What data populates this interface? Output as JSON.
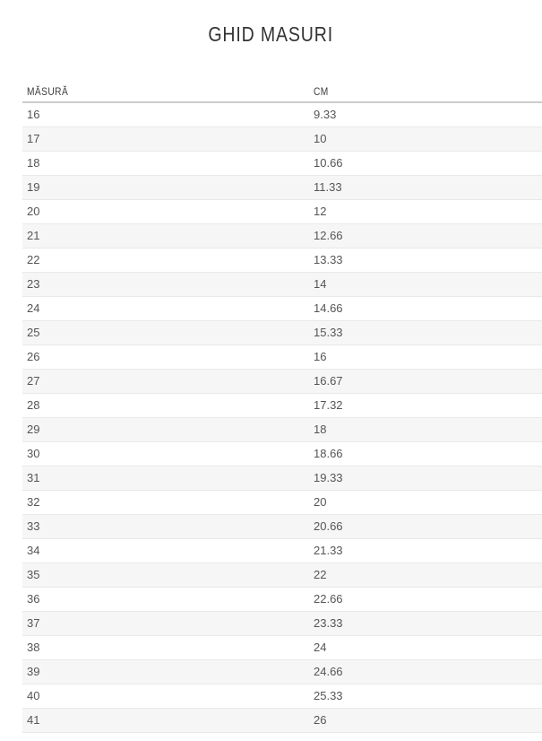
{
  "page": {
    "title": "GHID MASURI"
  },
  "table": {
    "columns": [
      "MĂSURĂ",
      "CM"
    ],
    "rows": [
      [
        "16",
        "9.33"
      ],
      [
        "17",
        "10"
      ],
      [
        "18",
        "10.66"
      ],
      [
        "19",
        "11.33"
      ],
      [
        "20",
        "12"
      ],
      [
        "21",
        "12.66"
      ],
      [
        "22",
        "13.33"
      ],
      [
        "23",
        "14"
      ],
      [
        "24",
        "14.66"
      ],
      [
        "25",
        "15.33"
      ],
      [
        "26",
        "16"
      ],
      [
        "27",
        "16.67"
      ],
      [
        "28",
        "17.32"
      ],
      [
        "29",
        "18"
      ],
      [
        "30",
        "18.66"
      ],
      [
        "31",
        "19.33"
      ],
      [
        "32",
        "20"
      ],
      [
        "33",
        "20.66"
      ],
      [
        "34",
        "21.33"
      ],
      [
        "35",
        "22"
      ],
      [
        "36",
        "22.66"
      ],
      [
        "37",
        "23.33"
      ],
      [
        "38",
        "24"
      ],
      [
        "39",
        "24.66"
      ],
      [
        "40",
        "25.33"
      ],
      [
        "41",
        "26"
      ]
    ]
  },
  "colors": {
    "title_text": "#333333",
    "header_text": "#3d3d3d",
    "cell_text": "#555555",
    "row_alt": "#f6f6f6",
    "row_border": "#e9e9e9",
    "header_border": "#cccccc"
  }
}
